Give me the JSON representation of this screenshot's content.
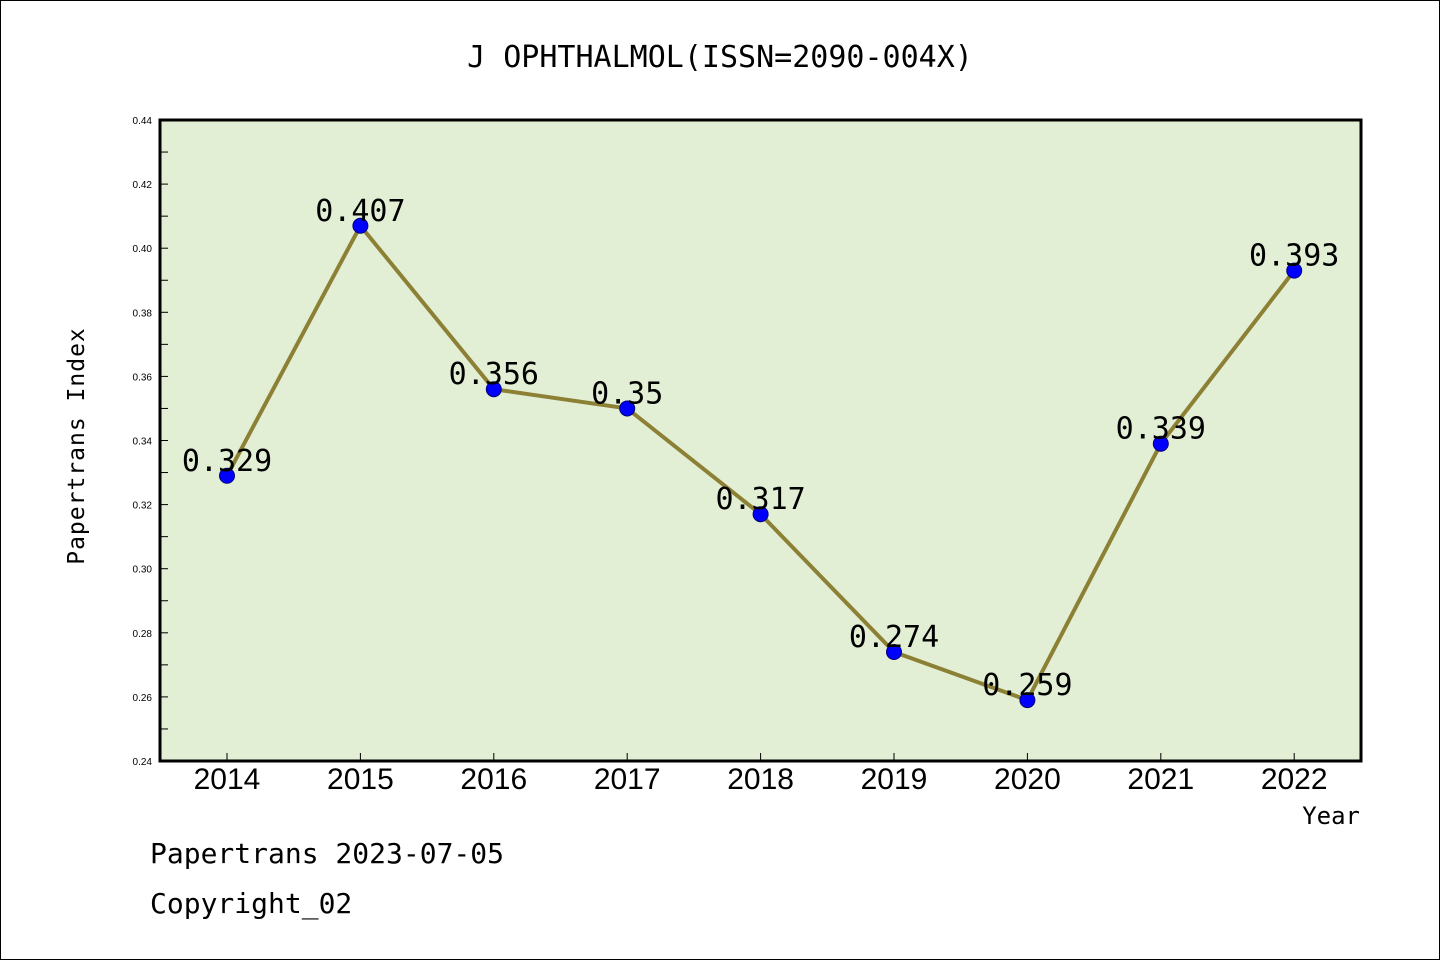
{
  "chart_data": {
    "type": "line",
    "title": "J OPHTHALMOL(ISSN=2090-004X)",
    "xlabel": "Year",
    "ylabel": "Papertrans Index",
    "categories": [
      "2014",
      "2015",
      "2016",
      "2017",
      "2018",
      "2019",
      "2020",
      "2021",
      "2022"
    ],
    "values": [
      0.329,
      0.407,
      0.356,
      0.35,
      0.317,
      0.274,
      0.259,
      0.339,
      0.393
    ],
    "data_labels": [
      "0.329",
      "0.407",
      "0.356",
      "0.35",
      "0.317",
      "0.274",
      "0.259",
      "0.339",
      "0.393"
    ],
    "ylim": [
      0.24,
      0.44
    ],
    "yticks": [
      "0.24",
      "0.26",
      "0.28",
      "0.30",
      "0.32",
      "0.34",
      "0.36",
      "0.38",
      "0.40",
      "0.42",
      "0.44"
    ],
    "grid": false,
    "colors": {
      "plot_background": "#e2efd4",
      "line": "#8c8035",
      "marker": "#0000ff",
      "marker_edge": "#00007a"
    }
  },
  "footer": {
    "line1": "Papertrans 2023-07-05",
    "line2": "Copyright_02"
  }
}
